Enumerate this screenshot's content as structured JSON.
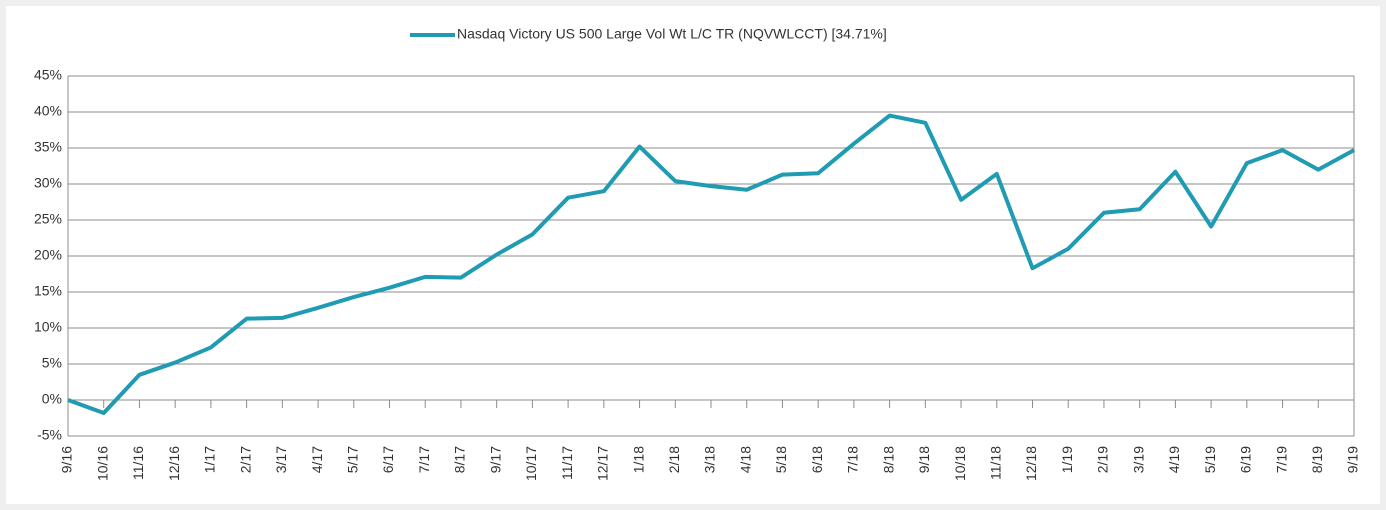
{
  "chart_data": {
    "type": "line",
    "categories": [
      "9/16",
      "10/16",
      "11/16",
      "12/16",
      "1/17",
      "2/17",
      "3/17",
      "4/17",
      "5/17",
      "6/17",
      "7/17",
      "8/17",
      "9/17",
      "10/17",
      "11/17",
      "12/17",
      "1/18",
      "2/18",
      "3/18",
      "4/18",
      "5/18",
      "6/18",
      "7/18",
      "8/18",
      "9/18",
      "10/18",
      "11/18",
      "12/18",
      "1/19",
      "2/19",
      "3/19",
      "4/19",
      "5/19",
      "6/19",
      "7/19",
      "8/19",
      "9/19"
    ],
    "series": [
      {
        "name": "Nasdaq Victory US 500 Large Vol Wt L/C TR (NQVWLCCT) [34.71%]",
        "color": "#1f9bb3",
        "values": [
          0,
          -1.8,
          3.5,
          5.2,
          7.3,
          11.3,
          11.4,
          12.8,
          14.3,
          15.6,
          17.1,
          17.0,
          20.2,
          23.0,
          28.1,
          29.0,
          35.2,
          30.4,
          29.7,
          29.2,
          31.3,
          31.5,
          35.6,
          39.5,
          38.5,
          27.8,
          31.4,
          18.3,
          21.0,
          26.0,
          26.5,
          31.7,
          24.1,
          32.9,
          34.7,
          32.0,
          34.71
        ]
      }
    ],
    "ylim": [
      -5,
      45
    ],
    "yticks": [
      {
        "value": -5,
        "label": "-5%"
      },
      {
        "value": 0,
        "label": "0%"
      },
      {
        "value": 5,
        "label": "5%"
      },
      {
        "value": 10,
        "label": "10%"
      },
      {
        "value": 15,
        "label": "15%"
      },
      {
        "value": 20,
        "label": "20%"
      },
      {
        "value": 25,
        "label": "25%"
      },
      {
        "value": 30,
        "label": "30%"
      },
      {
        "value": 35,
        "label": "35%"
      },
      {
        "value": 40,
        "label": "40%"
      },
      {
        "value": 45,
        "label": "45%"
      }
    ],
    "grid": true,
    "legend": "top"
  }
}
